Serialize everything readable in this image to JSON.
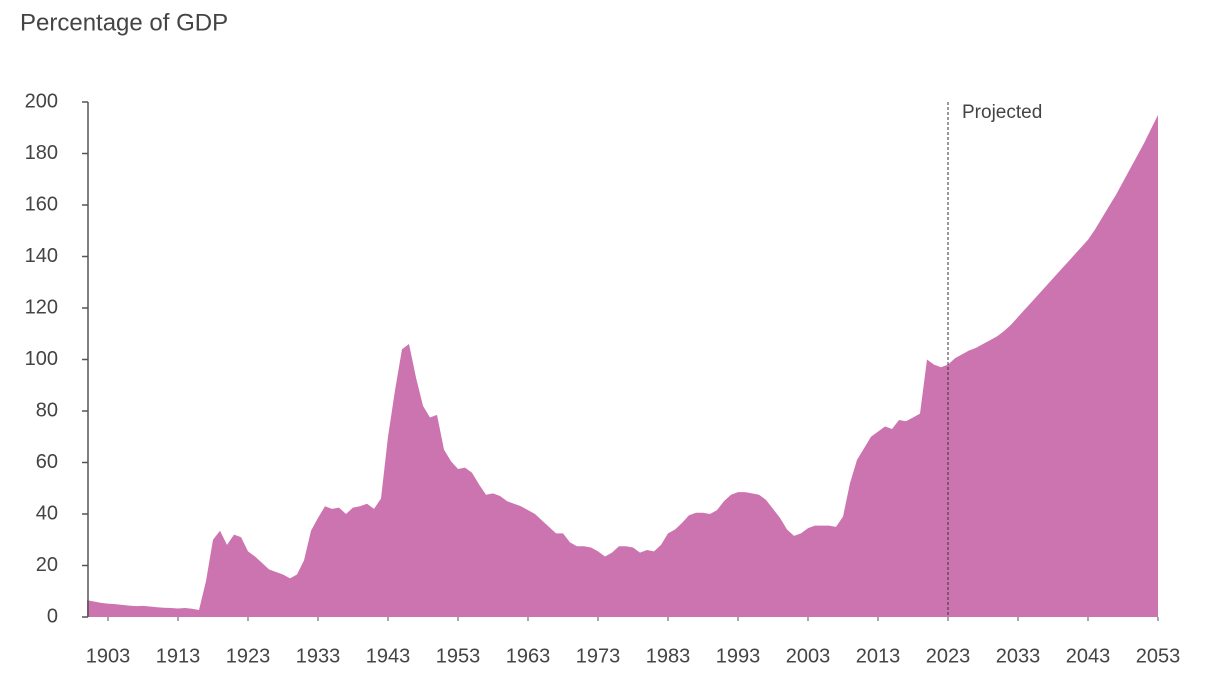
{
  "chart_data": {
    "type": "area",
    "title": "Percentage of GDP",
    "color": "#cc74b0",
    "x": [
      1900,
      1901,
      1902,
      1903,
      1904,
      1905,
      1906,
      1907,
      1908,
      1909,
      1910,
      1911,
      1912,
      1913,
      1914,
      1915,
      1916,
      1917,
      1918,
      1919,
      1920,
      1921,
      1922,
      1923,
      1924,
      1925,
      1926,
      1927,
      1928,
      1929,
      1930,
      1931,
      1932,
      1933,
      1934,
      1935,
      1936,
      1937,
      1938,
      1939,
      1940,
      1941,
      1942,
      1943,
      1944,
      1945,
      1946,
      1947,
      1948,
      1949,
      1950,
      1951,
      1952,
      1953,
      1954,
      1955,
      1956,
      1957,
      1958,
      1959,
      1960,
      1961,
      1962,
      1963,
      1964,
      1965,
      1966,
      1967,
      1968,
      1969,
      1970,
      1971,
      1972,
      1973,
      1974,
      1975,
      1976,
      1977,
      1978,
      1979,
      1980,
      1981,
      1982,
      1983,
      1984,
      1985,
      1986,
      1987,
      1988,
      1989,
      1990,
      1991,
      1992,
      1993,
      1994,
      1995,
      1996,
      1997,
      1998,
      1999,
      2000,
      2001,
      2002,
      2003,
      2004,
      2005,
      2006,
      2007,
      2008,
      2009,
      2010,
      2011,
      2012,
      2013,
      2014,
      2015,
      2016,
      2017,
      2018,
      2019,
      2020,
      2021,
      2022,
      2023,
      2024,
      2025,
      2026,
      2027,
      2028,
      2029,
      2030,
      2031,
      2032,
      2033,
      2034,
      2035,
      2036,
      2037,
      2038,
      2039,
      2040,
      2041,
      2042,
      2043,
      2044,
      2045,
      2046,
      2047,
      2048,
      2049,
      2050,
      2051,
      2052,
      2053
    ],
    "values": [
      6.5,
      6,
      5.5,
      5.2,
      5,
      4.7,
      4.4,
      4.2,
      4.3,
      4.1,
      3.8,
      3.6,
      3.5,
      3.3,
      3.5,
      3.2,
      2.7,
      14,
      30,
      33.5,
      28,
      32,
      31,
      25.5,
      23.5,
      21,
      18.5,
      17.5,
      16.5,
      15,
      16.5,
      22,
      33.5,
      38.5,
      43,
      42,
      42.5,
      40,
      42.5,
      43,
      44,
      42,
      46,
      70,
      88,
      104,
      106,
      93,
      82,
      77.5,
      78.5,
      65,
      60.5,
      57.5,
      58,
      56,
      51.5,
      47.5,
      48,
      47,
      45,
      44,
      43,
      41.5,
      40,
      37.5,
      35,
      32.5,
      32.5,
      29,
      27.5,
      27.5,
      27,
      25.5,
      23.5,
      25,
      27.5,
      27.5,
      27,
      25,
      26,
      25.5,
      28,
      32.5,
      34,
      36.5,
      39.5,
      40.5,
      40.5,
      40,
      41.5,
      45,
      47.5,
      48.5,
      48.5,
      48,
      47.5,
      45.5,
      42,
      38.5,
      34,
      31.5,
      32.5,
      34.5,
      35.5,
      35.5,
      35.5,
      35,
      39,
      52,
      61,
      65.5,
      70,
      72,
      74,
      73,
      76.5,
      76,
      77.5,
      79,
      100,
      98,
      97,
      98,
      100.5,
      102,
      103.5,
      104.5,
      106,
      107.5,
      109,
      111,
      113.5,
      116.5,
      119.5,
      122.5,
      125.5,
      128.5,
      131.5,
      134.5,
      137.5,
      140.5,
      143.5,
      146.5,
      150.5,
      155,
      159.5,
      164,
      169,
      174,
      179,
      184,
      189.5,
      195
    ],
    "xlim": [
      1900,
      2053
    ],
    "xticks": [
      1903,
      1913,
      1923,
      1933,
      1943,
      1953,
      1963,
      1973,
      1983,
      1993,
      2003,
      2013,
      2023,
      2033,
      2043,
      2053
    ],
    "ylim": [
      0,
      200
    ],
    "yticks": [
      0,
      20,
      40,
      60,
      80,
      100,
      120,
      140,
      160,
      180,
      200
    ],
    "annotations": [
      {
        "text": "Projected",
        "x": 2023
      }
    ]
  }
}
